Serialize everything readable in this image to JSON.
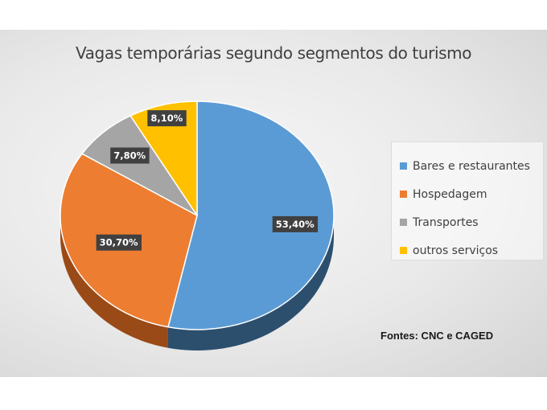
{
  "chart_data": {
    "type": "pie",
    "title": "Vagas temporárias segundo segmentos do turismo",
    "categories": [
      "Bares e restaurantes",
      "Hospedagem",
      "Transportes",
      "outros serviços"
    ],
    "values": [
      53.4,
      30.7,
      7.8,
      8.1
    ],
    "data_labels": [
      "53,40%",
      "30,70%",
      "7,80%",
      "8,10%"
    ],
    "colors": [
      "#5b9bd5",
      "#ed7d31",
      "#a5a5a5",
      "#ffc000"
    ],
    "dark_colors": [
      "#2c4f6e",
      "#9a4a16",
      "#666666",
      "#b38600"
    ],
    "legend_position": "right",
    "three_d": true
  },
  "source_note": "Fontes: CNC e CAGED"
}
